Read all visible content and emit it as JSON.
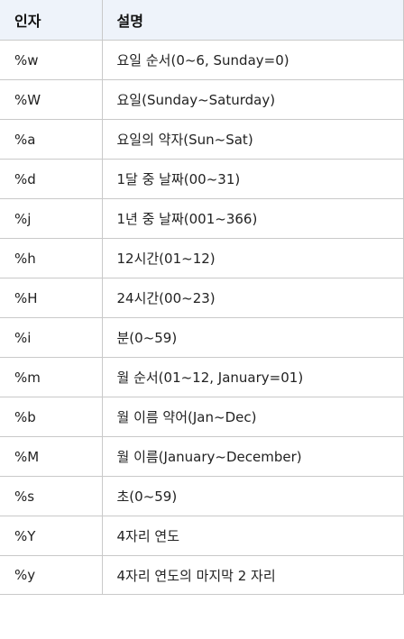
{
  "table": {
    "headers": [
      "인자",
      "설명"
    ],
    "rows": [
      [
        "%w",
        "요일 순서(0~6, Sunday=0)"
      ],
      [
        "%W",
        "요일(Sunday~Saturday)"
      ],
      [
        "%a",
        "요일의 약자(Sun~Sat)"
      ],
      [
        "%d",
        "1달 중 날짜(00~31)"
      ],
      [
        "%j",
        "1년 중 날짜(001~366)"
      ],
      [
        "%h",
        "12시간(01~12)"
      ],
      [
        "%H",
        "24시간(00~23)"
      ],
      [
        "%i",
        "분(0~59)"
      ],
      [
        "%m",
        "월 순서(01~12, January=01)"
      ],
      [
        "%b",
        "월 이름 약어(Jan~Dec)"
      ],
      [
        "%M",
        "월 이름(January~December)"
      ],
      [
        "%s",
        "초(0~59)"
      ],
      [
        "%Y",
        "4자리 연도"
      ],
      [
        "%y",
        "4자리 연도의 마지막 2 자리"
      ]
    ]
  }
}
